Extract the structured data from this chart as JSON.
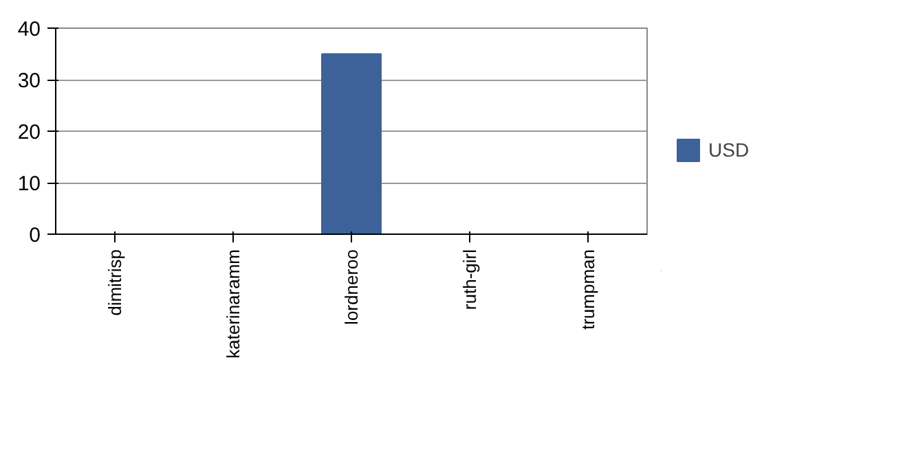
{
  "chart_data": {
    "type": "bar",
    "categories": [
      "dimitrisp",
      "katerinaramm",
      "lordneroo",
      "ruth-girl",
      "trumpman"
    ],
    "series": [
      {
        "name": "USD",
        "color": "#3d6299",
        "values": [
          0,
          0,
          35,
          0,
          0
        ]
      }
    ],
    "ylim": [
      0,
      40
    ],
    "yticks": [
      0,
      10,
      20,
      30,
      40
    ],
    "grid": "y",
    "legend": "right"
  }
}
